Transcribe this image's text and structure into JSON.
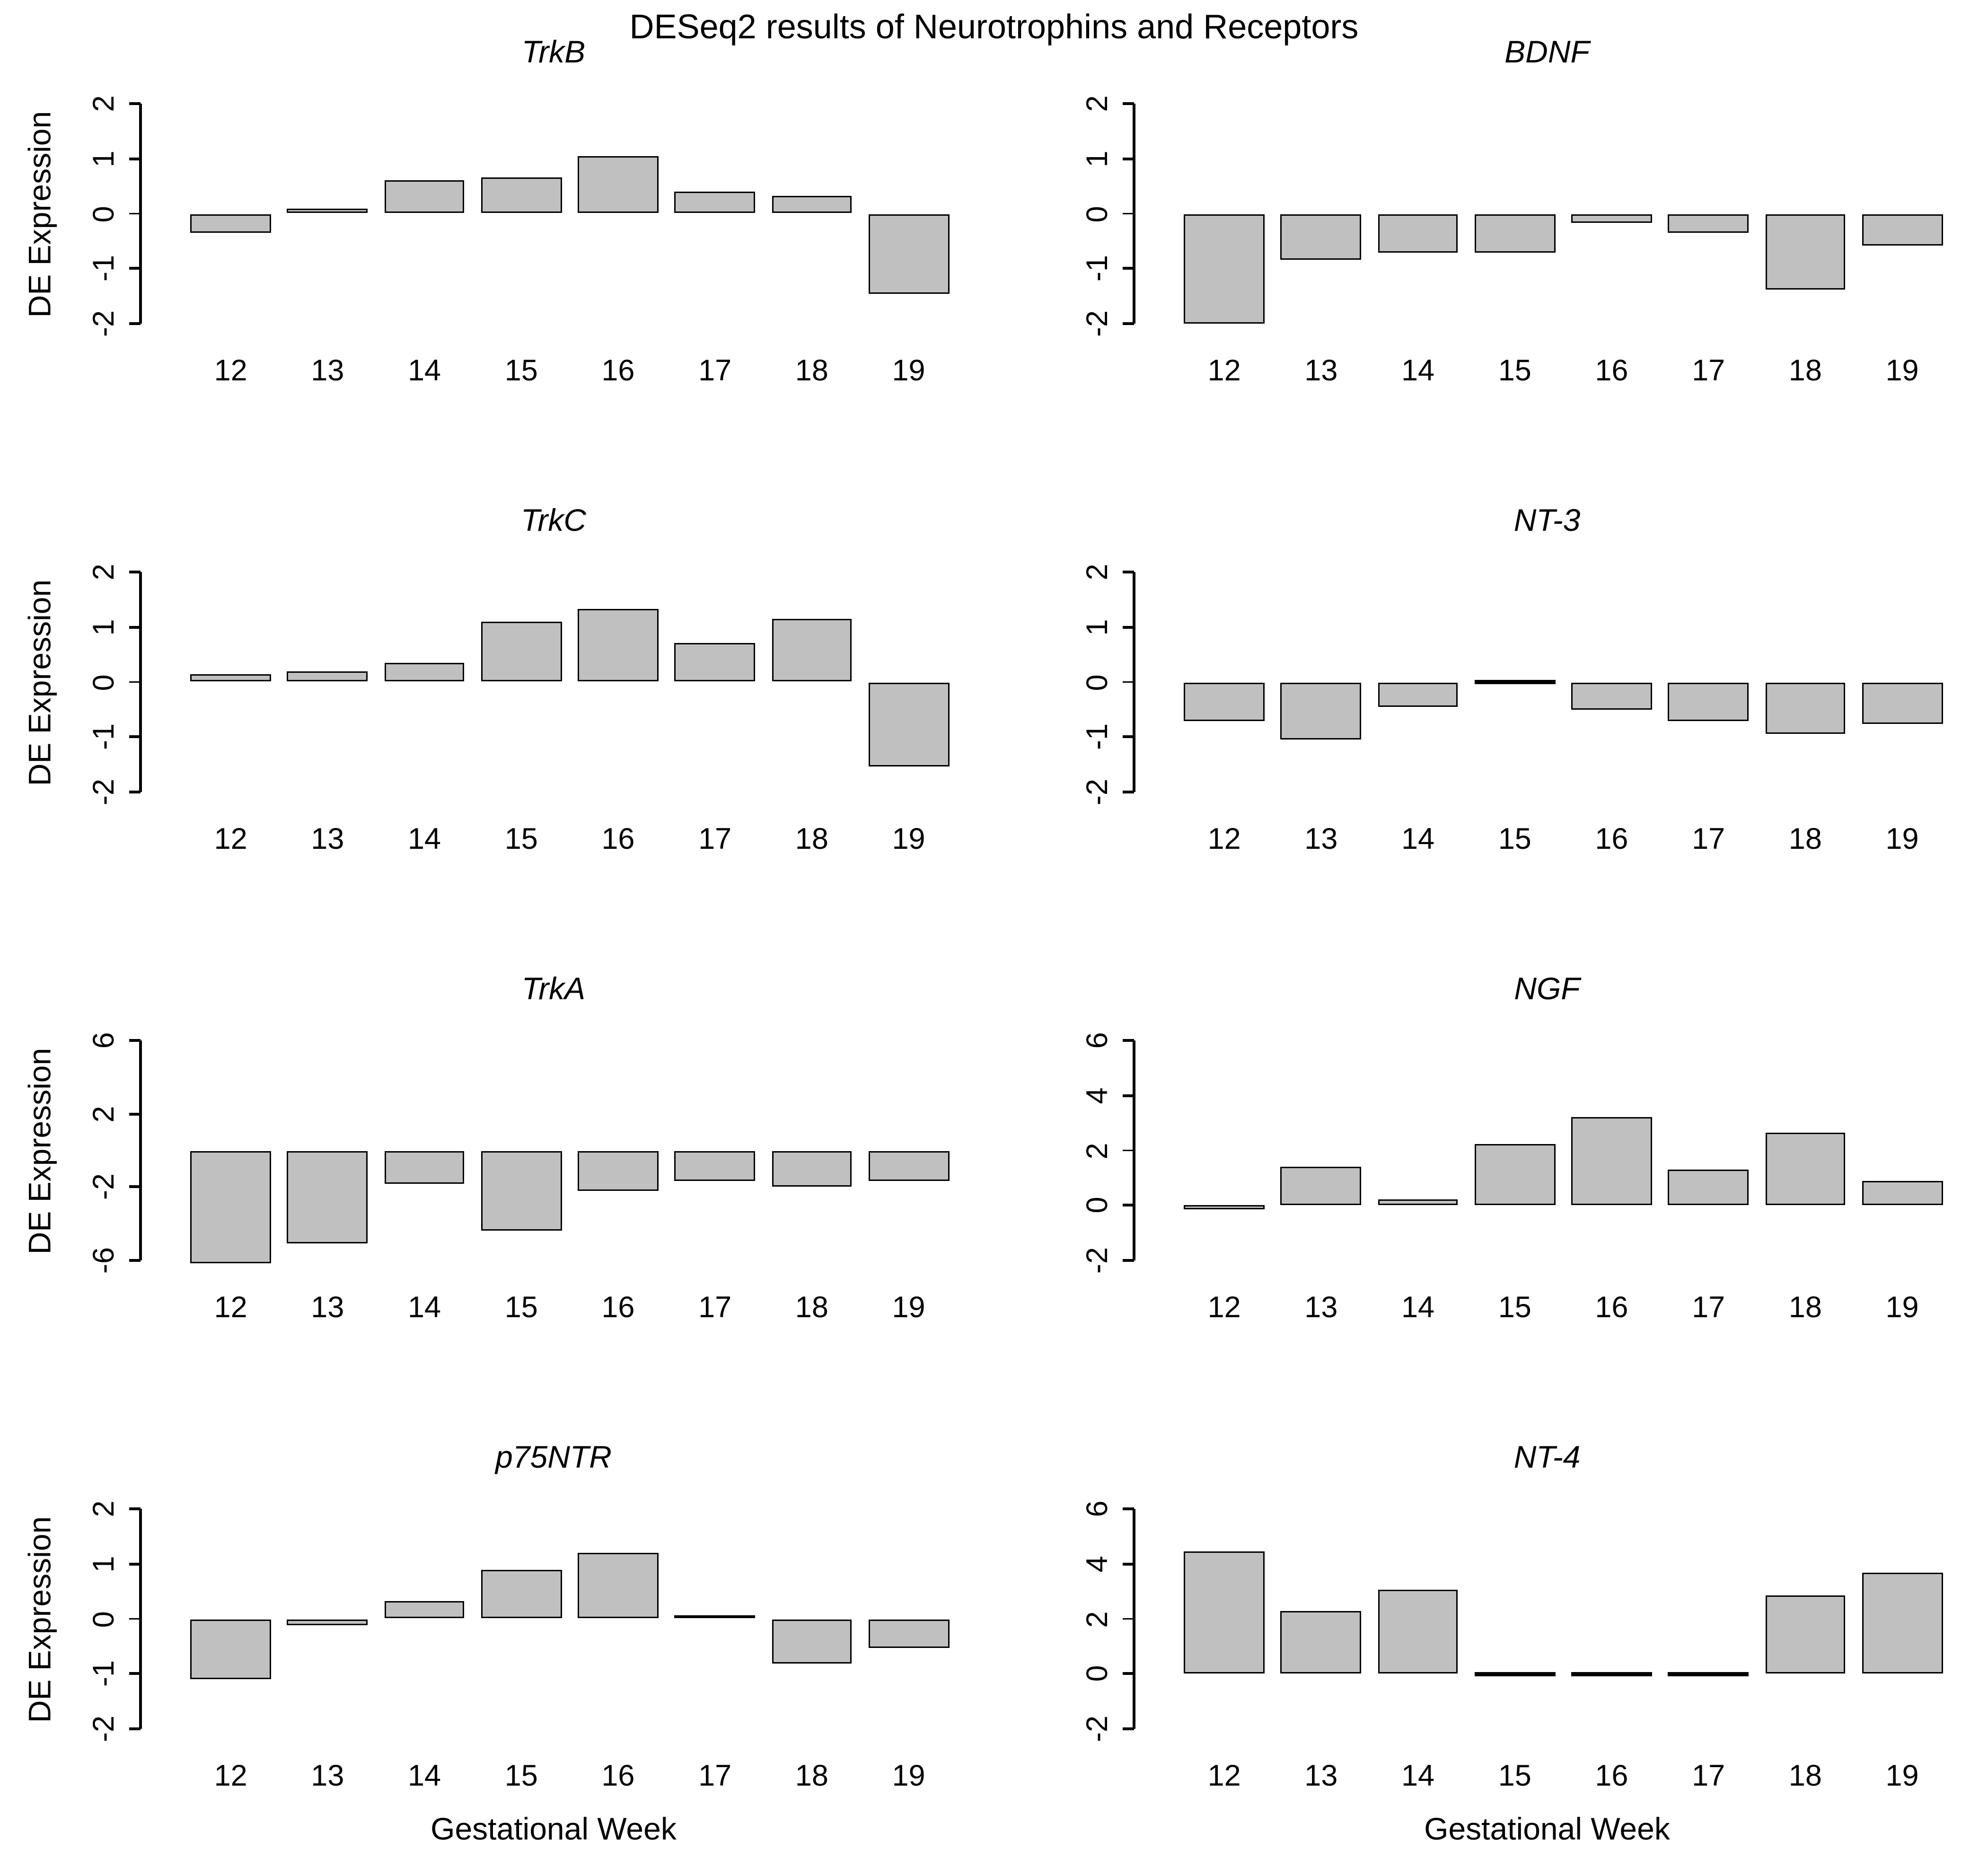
{
  "figure": {
    "title": "DESeq2 results of Neurotrophins and Receptors",
    "background": "#ffffff",
    "text_color": "#000000",
    "bar_fill": "#c0c0c0",
    "bar_border": "#000000"
  },
  "chart_data": [
    {
      "type": "bar",
      "title": "TrkB",
      "categories": [
        "12",
        "13",
        "14",
        "15",
        "16",
        "17",
        "18",
        "19"
      ],
      "values": [
        -0.35,
        0.1,
        0.6,
        0.65,
        1.05,
        0.4,
        0.33,
        -1.45
      ],
      "ylim": [
        -2,
        2
      ],
      "yticks": [
        -2,
        -1,
        0,
        1,
        2
      ],
      "ylabel": "DE Expression",
      "xlabel": "",
      "grid": "off",
      "legend": "none"
    },
    {
      "type": "bar",
      "title": "BDNF",
      "categories": [
        "12",
        "13",
        "14",
        "15",
        "16",
        "17",
        "18",
        "19"
      ],
      "values": [
        -2.0,
        -0.85,
        -0.7,
        -0.7,
        -0.17,
        -0.36,
        -1.38,
        -0.57
      ],
      "ylim": [
        -2,
        2
      ],
      "yticks": [
        -2,
        -1,
        0,
        1,
        2
      ],
      "ylabel": "",
      "xlabel": "",
      "grid": "off",
      "legend": "none"
    },
    {
      "type": "bar",
      "title": "TrkC",
      "categories": [
        "12",
        "13",
        "14",
        "15",
        "16",
        "17",
        "18",
        "19"
      ],
      "values": [
        0.15,
        0.2,
        0.35,
        1.1,
        1.32,
        0.72,
        1.15,
        -1.55
      ],
      "ylim": [
        -2,
        2
      ],
      "yticks": [
        -2,
        -1,
        0,
        1,
        2
      ],
      "ylabel": "DE Expression",
      "xlabel": "",
      "grid": "off",
      "legend": "none"
    },
    {
      "type": "bar",
      "title": "NT-3",
      "categories": [
        "12",
        "13",
        "14",
        "15",
        "16",
        "17",
        "18",
        "19"
      ],
      "values": [
        -0.71,
        -1.04,
        -0.45,
        0.06,
        -0.51,
        -0.71,
        -0.94,
        -0.76
      ],
      "ylim": [
        -2,
        2
      ],
      "yticks": [
        -2,
        -1,
        0,
        1,
        2
      ],
      "ylabel": "",
      "xlabel": "",
      "grid": "off",
      "legend": "none"
    },
    {
      "type": "bar",
      "title": "TrkA",
      "categories": [
        "12",
        "13",
        "14",
        "15",
        "16",
        "17",
        "18",
        "19"
      ],
      "values": [
        -6.2,
        -5.1,
        -1.85,
        -4.4,
        -2.25,
        -1.7,
        -1.95,
        -1.7
      ],
      "ylim": [
        -6,
        6
      ],
      "yticks": [
        -6,
        -2,
        2,
        6
      ],
      "ylabel": "DE Expression",
      "xlabel": "",
      "grid": "off",
      "legend": "none"
    },
    {
      "type": "bar",
      "title": "NGF",
      "categories": [
        "12",
        "13",
        "14",
        "15",
        "16",
        "17",
        "18",
        "19"
      ],
      "values": [
        -0.15,
        1.38,
        0.21,
        2.21,
        3.23,
        1.31,
        2.63,
        0.87
      ],
      "ylim": [
        -2,
        6
      ],
      "yticks": [
        -2,
        0,
        2,
        4,
        6
      ],
      "ylabel": "",
      "xlabel": "",
      "grid": "off",
      "legend": "none"
    },
    {
      "type": "bar",
      "title": "p75NTR",
      "categories": [
        "12",
        "13",
        "14",
        "15",
        "16",
        "17",
        "18",
        "19"
      ],
      "values": [
        -1.1,
        -0.11,
        0.33,
        0.9,
        1.19,
        0.07,
        -0.81,
        -0.53
      ],
      "ylim": [
        -2,
        2
      ],
      "yticks": [
        -2,
        -1,
        0,
        1,
        2
      ],
      "ylabel": "DE Expression",
      "xlabel": "Gestational Week",
      "grid": "off",
      "legend": "none"
    },
    {
      "type": "bar",
      "title": "NT-4",
      "categories": [
        "12",
        "13",
        "14",
        "15",
        "16",
        "17",
        "18",
        "19"
      ],
      "values": [
        4.45,
        2.3,
        3.05,
        0,
        0,
        0,
        2.87,
        3.7
      ],
      "ylim": [
        -2,
        6
      ],
      "yticks": [
        -2,
        0,
        2,
        4,
        6
      ],
      "ylabel": "",
      "xlabel": "Gestational Week",
      "grid": "off",
      "legend": "none"
    }
  ]
}
